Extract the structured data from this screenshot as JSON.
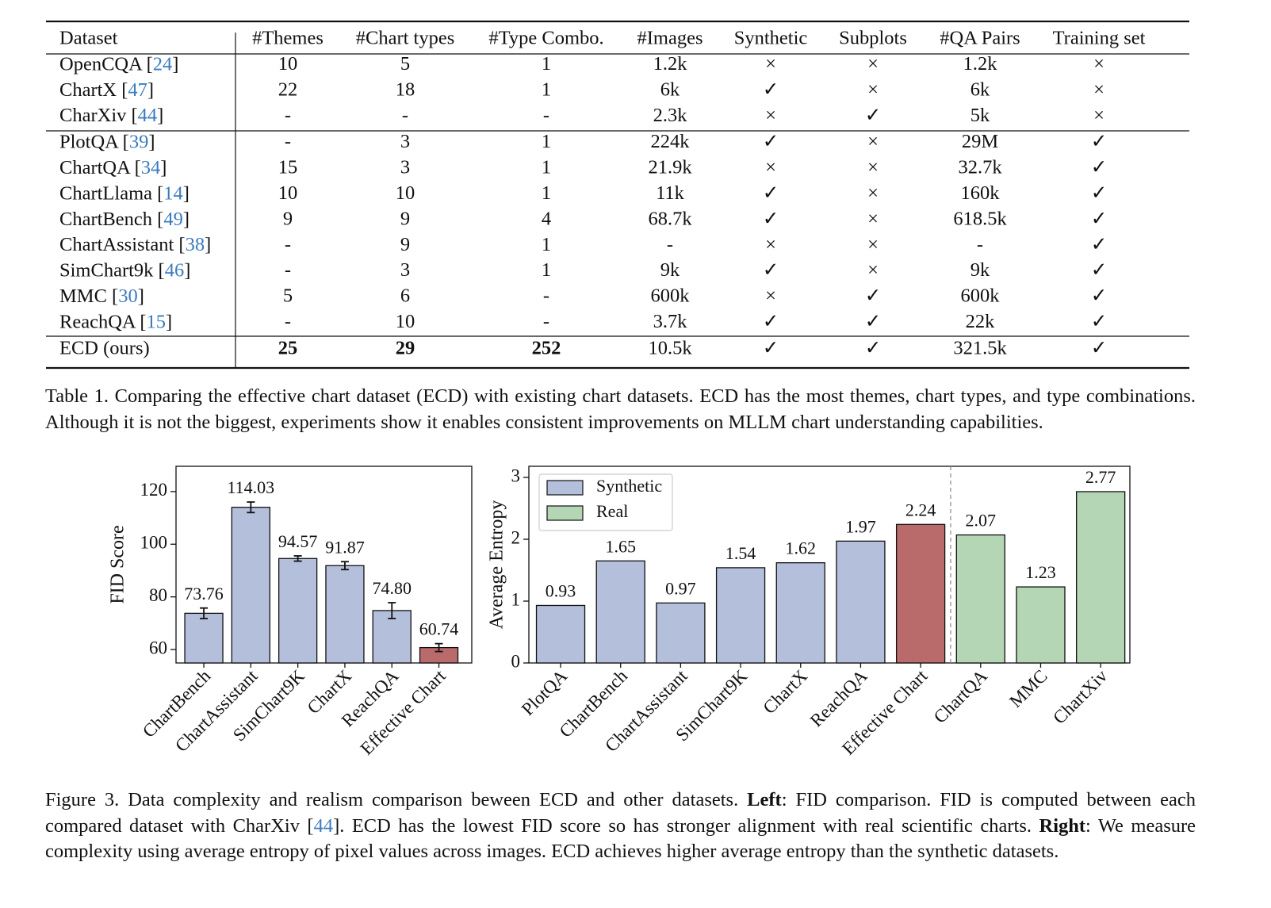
{
  "table": {
    "header": [
      "Dataset",
      "#Themes",
      "#Chart types",
      "#Type Combo.",
      "#Images",
      "Synthetic",
      "Subplots",
      "#QA Pairs",
      "Training set"
    ],
    "rows": [
      [
        "OpenCQA [24]",
        "10",
        "5",
        "1",
        "1.2k",
        "×",
        "×",
        "1.2k",
        "×"
      ],
      [
        "ChartX [47]",
        "22",
        "18",
        "1",
        "6k",
        "✓",
        "×",
        "6k",
        "×"
      ],
      [
        "CharXiv [44]",
        "-",
        "-",
        "-",
        "2.3k",
        "×",
        "✓",
        "5k",
        "×"
      ],
      [
        "PlotQA [39]",
        "-",
        "3",
        "1",
        "224k",
        "✓",
        "×",
        "29M",
        "✓"
      ],
      [
        "ChartQA [34]",
        "15",
        "3",
        "1",
        "21.9k",
        "×",
        "×",
        "32.7k",
        "✓"
      ],
      [
        "ChartLlama [14]",
        "10",
        "10",
        "1",
        "11k",
        "✓",
        "×",
        "160k",
        "✓"
      ],
      [
        "ChartBench [49]",
        "9",
        "9",
        "4",
        "68.7k",
        "✓",
        "×",
        "618.5k",
        "✓"
      ],
      [
        "ChartAssistant [38]",
        "-",
        "9",
        "1",
        "-",
        "×",
        "×",
        "-",
        "✓"
      ],
      [
        "SimChart9k [46]",
        "-",
        "3",
        "1",
        "9k",
        "✓",
        "×",
        "9k",
        "✓"
      ],
      [
        "MMC [30]",
        "5",
        "6",
        "-",
        "600k",
        "×",
        "✓",
        "600k",
        "✓"
      ],
      [
        "ReachQA [15]",
        "-",
        "10",
        "-",
        "3.7k",
        "✓",
        "✓",
        "22k",
        "✓"
      ],
      [
        "ECD (ours)",
        "25",
        "29",
        "252",
        "10.5k",
        "✓",
        "✓",
        "321.5k",
        "✓"
      ]
    ]
  },
  "table_caption": "Table 1. Comparing the effective chart dataset (ECD) with existing chart datasets. ECD has the most themes, chart types, and type combinations. Although it is not the biggest, experiments show it enables consistent improvements on MLLM chart understanding capabilities.",
  "chart_data": [
    {
      "type": "bar",
      "ylabel": "FID Score",
      "categories": [
        "ChartBench",
        "ChartAssistant",
        "SimChart9K",
        "ChartX",
        "ReachQA",
        "Effective Chart"
      ],
      "values": [
        73.76,
        114.03,
        94.57,
        91.87,
        74.8,
        60.74
      ],
      "value_labels": [
        "73.76",
        "114.03",
        "94.57",
        "91.87",
        "74.80",
        "60.74"
      ],
      "errors": [
        2,
        2,
        1,
        1.5,
        3,
        1.5
      ],
      "colors": [
        "#b4bfdc",
        "#b4bfdc",
        "#b4bfdc",
        "#b4bfdc",
        "#b4bfdc",
        "#b96b6b"
      ],
      "highlight_color": "#b96b6b",
      "highlight_text_color": "#a13a3a",
      "ylim": [
        54.9,
        129.6
      ],
      "yticks": [
        60,
        80,
        100,
        120
      ]
    },
    {
      "type": "bar",
      "ylabel": "Average Entropy",
      "categories": [
        "PlotQA",
        "ChartBench",
        "ChartAssistant",
        "SimChart9K",
        "ChartX",
        "ReachQA",
        "Effective Chart",
        "ChartQA",
        "MMC",
        "ChartXiv"
      ],
      "values": [
        0.93,
        1.65,
        0.97,
        1.54,
        1.62,
        1.97,
        2.24,
        2.07,
        1.23,
        2.77
      ],
      "colors": [
        "#b4bfdc",
        "#b4bfdc",
        "#b4bfdc",
        "#b4bfdc",
        "#b4bfdc",
        "#b4bfdc",
        "#b96b6b",
        "#b5d6b5",
        "#b5d6b5",
        "#b5d6b5"
      ],
      "highlight_color": "#b96b6b",
      "highlight_text_color": "#a13a3a",
      "legend": [
        {
          "name": "Synthetic",
          "color": "#b4bfdc"
        },
        {
          "name": "Real",
          "color": "#b5d6b5"
        }
      ],
      "ylim": [
        0,
        3.18
      ],
      "yticks": [
        0,
        1,
        2,
        3
      ]
    }
  ],
  "figure_caption": [
    {
      "text": "Figure 3. Data complexity and realism comparison beween ECD and other datasets. "
    },
    {
      "text": "Left",
      "style": "bold"
    },
    {
      "text": ": FID comparison. FID is computed between each compared dataset with CharXiv ["
    },
    {
      "text": "44",
      "style": "link"
    },
    {
      "text": "]. ECD has the lowest FID score so has stronger alignment with real scientific charts. "
    },
    {
      "text": "Right",
      "style": "bold"
    },
    {
      "text": ": We measure complexity using average entropy of pixel values across images. ECD achieves higher average entropy than the synthetic datasets."
    }
  ]
}
